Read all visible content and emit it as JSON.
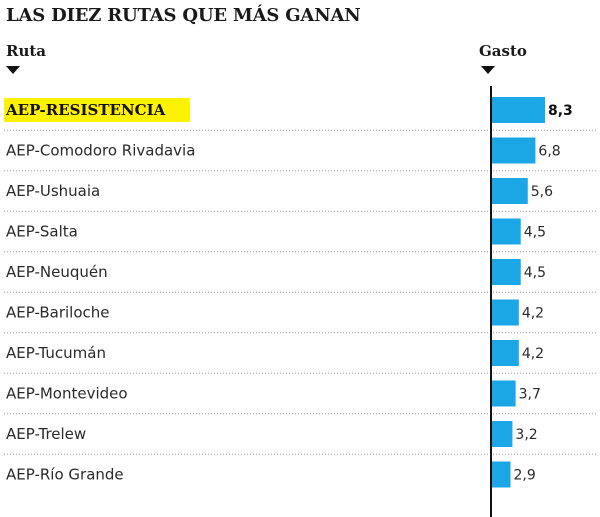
{
  "chart_data": {
    "type": "bar",
    "orientation": "horizontal",
    "title": "LAS DIEZ RUTAS QUE MÁS GANAN",
    "category_header": "Ruta",
    "value_header": "Gasto",
    "categories": [
      "AEP-RESISTENCIA",
      "AEP-Comodoro Rivadavia",
      "AEP-Ushuaia",
      "AEP-Salta",
      "AEP-Neuquén",
      "AEP-Bariloche",
      "AEP-Tucumán",
      "AEP-Montevideo",
      "AEP-Trelew",
      "AEP-Río Grande"
    ],
    "values": [
      8.3,
      6.8,
      5.6,
      4.5,
      4.5,
      4.2,
      4.2,
      3.7,
      3.2,
      2.9
    ],
    "value_labels": [
      "8,3",
      "6,8",
      "5,6",
      "4,5",
      "4,5",
      "4,2",
      "4,2",
      "3,7",
      "3,2",
      "2,9"
    ],
    "highlighted": "AEP-RESISTENCIA",
    "bar_color": "#1ba6e6",
    "highlight_color": "#fff200",
    "xlim": [
      0,
      8.3
    ],
    "grid": "dotted row separators",
    "legend": "none"
  }
}
